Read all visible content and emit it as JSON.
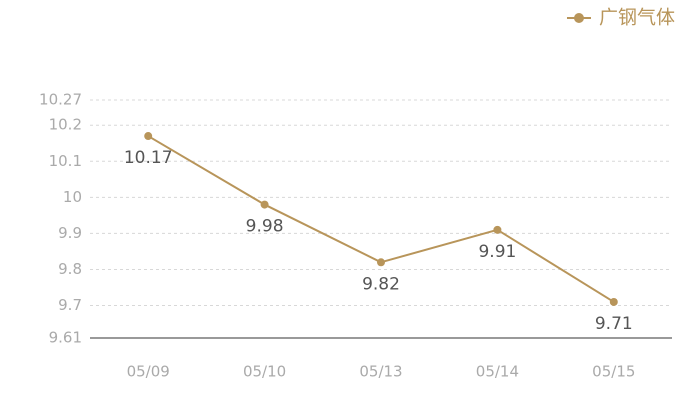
{
  "chart_data": {
    "type": "line",
    "categories": [
      "05/09",
      "05/10",
      "05/13",
      "05/14",
      "05/15"
    ],
    "series": [
      {
        "name": "广钢气体",
        "color": "#b8955a",
        "values": [
          10.17,
          9.98,
          9.82,
          9.91,
          9.71
        ]
      }
    ],
    "ylim": [
      9.61,
      10.27
    ],
    "yticks": [
      9.61,
      9.7,
      9.8,
      9.9,
      10,
      10.1,
      10.2,
      10.27
    ],
    "grid": true,
    "legend": "top-right"
  }
}
